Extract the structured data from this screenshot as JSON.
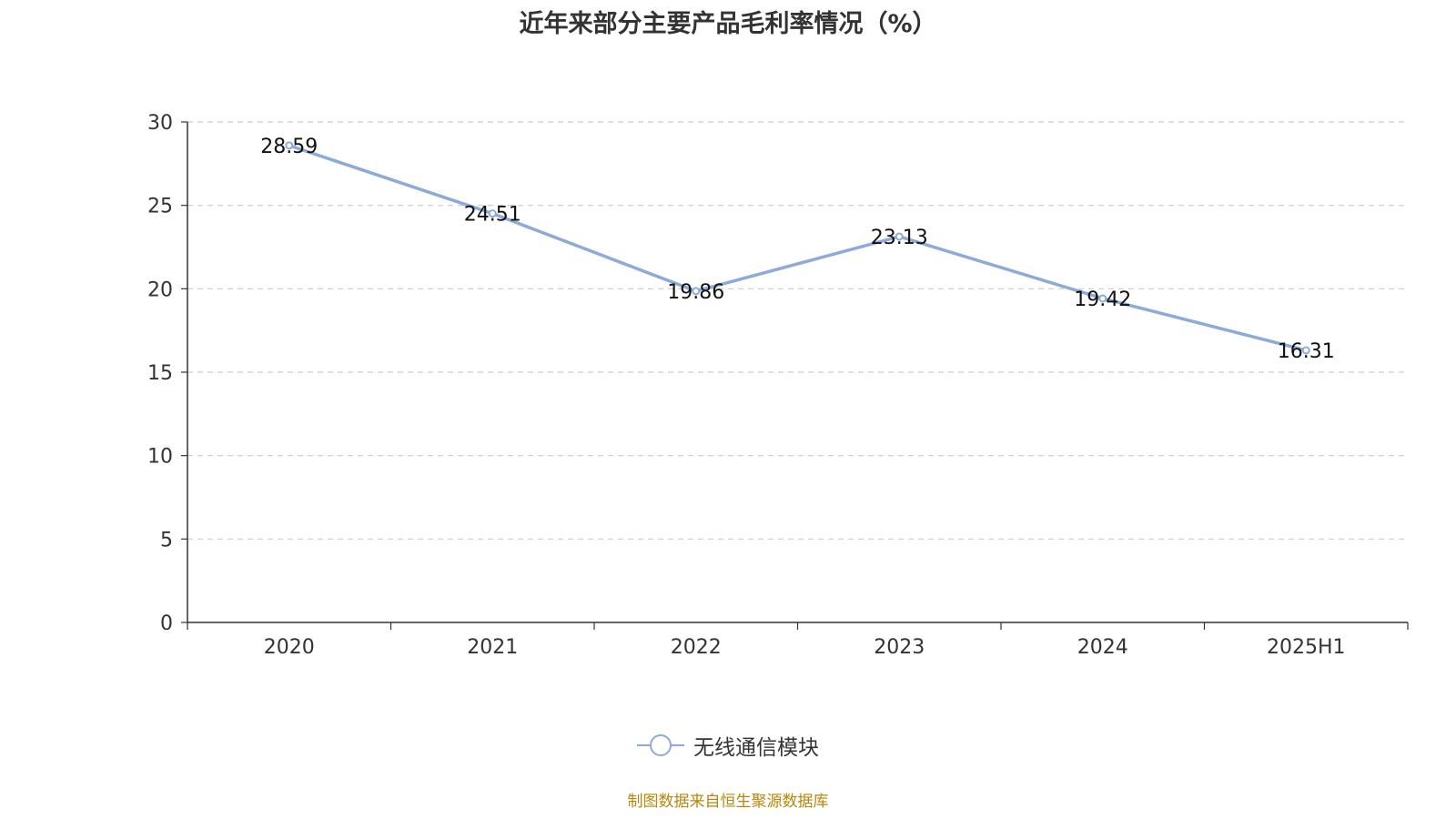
{
  "title": "近年来部分主要产品毛利率情况（%）",
  "source": "制图数据来自恒生聚源数据库",
  "chart_data": {
    "type": "line",
    "title": "近年来部分主要产品毛利率情况（%）",
    "categories": [
      "2020",
      "2021",
      "2022",
      "2023",
      "2024",
      "2025H1"
    ],
    "series": [
      {
        "name": "无线通信模块",
        "values": [
          28.59,
          24.51,
          19.86,
          23.13,
          19.42,
          16.31
        ],
        "color": "#8eaad9"
      }
    ],
    "ylim": [
      0,
      30
    ],
    "yticks": [
      0,
      5,
      10,
      15,
      20,
      25,
      30
    ],
    "grid": true,
    "legend": "bottom-center"
  }
}
